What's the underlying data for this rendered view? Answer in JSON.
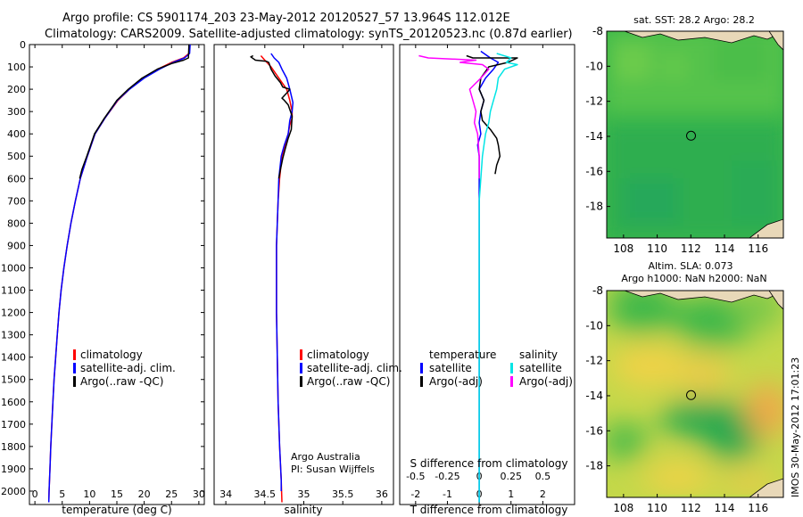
{
  "header": {
    "line1": "Argo profile: CS 5901174_203 23-May-2012 20120527_57 13.964S 112.012E",
    "line2": "Climatology: CARS2009. Satellite-adjusted climatology: synTS_20120523.nc (0.87d earlier)"
  },
  "colors": {
    "climatology": "#ff0000",
    "satellite": "#0000ff",
    "argo": "#000000",
    "t_satellite": "#0000ff",
    "s_satellite": "#00e5e5",
    "s_argo": "#ff00ff"
  },
  "chart_data": [
    {
      "id": "temperature",
      "type": "line",
      "xlabel": "temperature (deg C)",
      "ylabel": "",
      "xlim": [
        -1,
        31
      ],
      "ylim": [
        2060,
        0
      ],
      "xticks": [
        0,
        5,
        10,
        15,
        20,
        25,
        30
      ],
      "xticklabels": [
        "0",
        "5",
        "10",
        "15",
        "20",
        "25",
        "30"
      ],
      "yticks": [
        0,
        100,
        200,
        300,
        400,
        500,
        600,
        700,
        800,
        900,
        1000,
        1100,
        1200,
        1300,
        1400,
        1500,
        1600,
        1700,
        1800,
        1900,
        2000
      ],
      "yticklabels": [
        "0",
        "100",
        "200",
        "300",
        "400",
        "500",
        "600",
        "700",
        "800",
        "900",
        "1000",
        "1100",
        "1200",
        "1300",
        "1400",
        "1500",
        "1600",
        "1700",
        "1800",
        "1900",
        "2000"
      ],
      "legend": [
        "climatology",
        "satellite-adj. clim.",
        "Argo(..raw -QC)"
      ],
      "legend_position": "lower-right",
      "series": [
        {
          "name": "climatology",
          "color": "#ff0000",
          "width": 1.5,
          "points": [
            [
              28.3,
              0
            ],
            [
              28.2,
              40
            ],
            [
              27.2,
              60
            ],
            [
              25,
              80
            ],
            [
              22.5,
              110
            ],
            [
              19.8,
              150
            ],
            [
              17.3,
              200
            ],
            [
              15.2,
              250
            ],
            [
              12.8,
              330
            ],
            [
              11,
              400
            ],
            [
              9.6,
              500
            ],
            [
              8.3,
              600
            ],
            [
              7.4,
              700
            ],
            [
              6.6,
              800
            ],
            [
              5.9,
              900
            ],
            [
              5.3,
              1000
            ],
            [
              4.8,
              1100
            ],
            [
              4.4,
              1200
            ],
            [
              4.1,
              1300
            ],
            [
              3.8,
              1400
            ],
            [
              3.5,
              1500
            ],
            [
              3.3,
              1600
            ],
            [
              3.1,
              1700
            ],
            [
              2.9,
              1800
            ],
            [
              2.75,
              1900
            ],
            [
              2.6,
              2000
            ],
            [
              2.55,
              2050
            ]
          ]
        },
        {
          "name": "satellite-adj. clim.",
          "color": "#0000ff",
          "width": 1.5,
          "points": [
            [
              28.4,
              0
            ],
            [
              28.3,
              40
            ],
            [
              27.4,
              60
            ],
            [
              25.3,
              80
            ],
            [
              22.8,
              110
            ],
            [
              20,
              150
            ],
            [
              17.3,
              200
            ],
            [
              15.1,
              250
            ],
            [
              12.8,
              330
            ],
            [
              11,
              400
            ],
            [
              9.6,
              500
            ],
            [
              8.3,
              600
            ],
            [
              7.4,
              700
            ],
            [
              6.6,
              800
            ],
            [
              5.9,
              900
            ],
            [
              5.3,
              1000
            ],
            [
              4.8,
              1100
            ],
            [
              4.4,
              1200
            ],
            [
              4.1,
              1300
            ],
            [
              3.8,
              1400
            ],
            [
              3.5,
              1500
            ],
            [
              3.3,
              1600
            ],
            [
              3.1,
              1700
            ],
            [
              2.9,
              1800
            ],
            [
              2.75,
              1900
            ],
            [
              2.6,
              2000
            ],
            [
              2.55,
              2050
            ]
          ]
        },
        {
          "name": "Argo(..raw -QC)",
          "color": "#000000",
          "width": 1.5,
          "points": [
            [
              28.2,
              0
            ],
            [
              28.1,
              60
            ],
            [
              27.2,
              70
            ],
            [
              25,
              85
            ],
            [
              22.4,
              110
            ],
            [
              19.6,
              150
            ],
            [
              17.1,
              200
            ],
            [
              15,
              250
            ],
            [
              12.7,
              330
            ],
            [
              10.9,
              400
            ],
            [
              9.5,
              500
            ],
            [
              8.6,
              560
            ],
            [
              8.2,
              600
            ]
          ]
        }
      ]
    },
    {
      "id": "salinity",
      "type": "line",
      "xlabel": "salinity",
      "ylabel": "",
      "xlim": [
        33.85,
        36.15
      ],
      "ylim": [
        2060,
        0
      ],
      "xticks": [
        34,
        34.5,
        35,
        35.5,
        36
      ],
      "xticklabels": [
        "34",
        "34.5",
        "35",
        "35.5",
        "36"
      ],
      "legend": [
        "climatology",
        "satellite-adj. clim.",
        "Argo(..raw -QC)"
      ],
      "legend_position": "lower-right",
      "annotation": [
        "Argo Australia",
        "PI: Susan Wijffels"
      ],
      "series": [
        {
          "name": "climatology",
          "color": "#ff0000",
          "width": 1.5,
          "points": [
            [
              34.45,
              50
            ],
            [
              34.5,
              70
            ],
            [
              34.58,
              100
            ],
            [
              34.68,
              150
            ],
            [
              34.78,
              200
            ],
            [
              34.82,
              250
            ],
            [
              34.85,
              300
            ],
            [
              34.85,
              330
            ],
            [
              34.82,
              360
            ],
            [
              34.8,
              400
            ],
            [
              34.76,
              450
            ],
            [
              34.72,
              500
            ],
            [
              34.69,
              600
            ],
            [
              34.67,
              700
            ],
            [
              34.66,
              800
            ],
            [
              34.65,
              900
            ],
            [
              34.65,
              1000
            ],
            [
              34.65,
              1200
            ],
            [
              34.66,
              1400
            ],
            [
              34.67,
              1600
            ],
            [
              34.69,
              1800
            ],
            [
              34.71,
              1950
            ],
            [
              34.72,
              2050
            ]
          ]
        },
        {
          "name": "satellite-adj. clim.",
          "color": "#0000ff",
          "width": 1.5,
          "points": [
            [
              34.58,
              40
            ],
            [
              34.62,
              60
            ],
            [
              34.68,
              80
            ],
            [
              34.72,
              110
            ],
            [
              34.78,
              150
            ],
            [
              34.82,
              200
            ],
            [
              34.86,
              260
            ],
            [
              34.85,
              300
            ],
            [
              34.82,
              340
            ],
            [
              34.8,
              400
            ],
            [
              34.75,
              450
            ],
            [
              34.71,
              500
            ],
            [
              34.68,
              600
            ],
            [
              34.67,
              700
            ],
            [
              34.66,
              800
            ],
            [
              34.65,
              900
            ],
            [
              34.65,
              1000
            ],
            [
              34.65,
              1200
            ],
            [
              34.66,
              1400
            ],
            [
              34.67,
              1600
            ],
            [
              34.69,
              1800
            ],
            [
              34.71,
              1950
            ],
            [
              34.71,
              2000
            ]
          ]
        },
        {
          "name": "Argo(..raw -QC)",
          "color": "#000000",
          "width": 1.5,
          "points": [
            [
              34.35,
              50
            ],
            [
              34.32,
              55
            ],
            [
              34.38,
              70
            ],
            [
              34.52,
              75
            ],
            [
              34.55,
              80
            ],
            [
              34.58,
              110
            ],
            [
              34.63,
              140
            ],
            [
              34.7,
              170
            ],
            [
              34.73,
              190
            ],
            [
              34.82,
              200
            ],
            [
              34.8,
              210
            ],
            [
              34.72,
              240
            ],
            [
              34.75,
              250
            ],
            [
              34.8,
              270
            ],
            [
              34.85,
              320
            ],
            [
              34.84,
              380
            ],
            [
              34.8,
              420
            ],
            [
              34.76,
              470
            ],
            [
              34.73,
              510
            ],
            [
              34.7,
              560
            ],
            [
              34.68,
              600
            ]
          ]
        }
      ]
    },
    {
      "id": "difference",
      "type": "line",
      "xlabel": "T difference from climatology",
      "xlabel_top": "S difference from climatology",
      "xlim": [
        -2.5,
        3
      ],
      "ylim": [
        2060,
        0
      ],
      "xticks": [
        -2,
        -1,
        0,
        1,
        2
      ],
      "xticklabels": [
        "-2",
        "-1",
        "0",
        "1",
        "2"
      ],
      "s_xticklabels": [
        "-0.5",
        "-0.25",
        "0",
        "0.25",
        "0.5"
      ],
      "legend_temperature_title": "temperature",
      "legend_salinity_title": "salinity",
      "legend_temperature": [
        "satellite",
        "Argo(-adj)"
      ],
      "legend_salinity": [
        "satellite",
        "Argo(-adj)"
      ],
      "legend_position": "lower-center",
      "series": [
        {
          "name": "T satellite",
          "color": "#0000ff",
          "width": 1.5,
          "points": [
            [
              0.05,
              30
            ],
            [
              0.35,
              60
            ],
            [
              0.6,
              80
            ],
            [
              0.45,
              110
            ],
            [
              0.2,
              150
            ],
            [
              0,
              200
            ],
            [
              0.15,
              250
            ],
            [
              0.05,
              300
            ],
            [
              0,
              350
            ],
            [
              0.05,
              400
            ],
            [
              -0.05,
              450
            ],
            [
              0,
              500
            ],
            [
              0,
              600
            ],
            [
              0,
              700
            ],
            [
              0,
              800
            ],
            [
              0,
              1000
            ],
            [
              0,
              1200
            ],
            [
              0,
              1500
            ],
            [
              0,
              1800
            ],
            [
              0,
              2050
            ]
          ]
        },
        {
          "name": "T Argo(-adj)",
          "color": "#000000",
          "width": 1.5,
          "points": [
            [
              -0.4,
              50
            ],
            [
              -0.2,
              60
            ],
            [
              1.2,
              60
            ],
            [
              0.9,
              80
            ],
            [
              0.3,
              100
            ],
            [
              0.05,
              150
            ],
            [
              0,
              200
            ],
            [
              0.15,
              250
            ],
            [
              0.05,
              300
            ],
            [
              0.1,
              340
            ],
            [
              0.35,
              380
            ],
            [
              0.55,
              420
            ],
            [
              0.6,
              450
            ],
            [
              0.65,
              500
            ],
            [
              0.55,
              540
            ],
            [
              0.5,
              580
            ]
          ]
        },
        {
          "name": "S satellite",
          "color": "#00e5e5",
          "width": 1.5,
          "points": [
            [
              0.55,
              40
            ],
            [
              0.9,
              55
            ],
            [
              1.0,
              60
            ],
            [
              0.85,
              80
            ],
            [
              1.2,
              90
            ],
            [
              0.8,
              110
            ],
            [
              0.6,
              150
            ],
            [
              0.55,
              200
            ],
            [
              0.45,
              250
            ],
            [
              0.35,
              300
            ],
            [
              0.3,
              350
            ],
            [
              0.2,
              400
            ],
            [
              0.1,
              500
            ],
            [
              0.05,
              600
            ],
            [
              0,
              700
            ],
            [
              0,
              800
            ],
            [
              0,
              1000
            ],
            [
              0,
              1200
            ],
            [
              0,
              1500
            ],
            [
              0,
              1800
            ],
            [
              0,
              2050
            ]
          ]
        },
        {
          "name": "S Argo(-adj)",
          "color": "#ff00ff",
          "width": 1.5,
          "points": [
            [
              -1.9,
              50
            ],
            [
              -1.6,
              60
            ],
            [
              -0.1,
              70
            ],
            [
              -0.4,
              75
            ],
            [
              -0.6,
              80
            ],
            [
              0.1,
              90
            ],
            [
              0.3,
              110
            ],
            [
              0.05,
              150
            ],
            [
              -0.3,
              200
            ],
            [
              -0.2,
              250
            ],
            [
              -0.1,
              300
            ],
            [
              -0.15,
              350
            ],
            [
              -0.05,
              400
            ],
            [
              0,
              500
            ],
            [
              0,
              550
            ],
            [
              0,
              600
            ]
          ]
        }
      ]
    },
    {
      "id": "sst_map",
      "type": "heatmap",
      "title": "sat. SST: 28.2 Argo: 28.2",
      "xlim": [
        107,
        117.5
      ],
      "ylim": [
        -19.8,
        -8
      ],
      "xticks": [
        108,
        110,
        112,
        114,
        116
      ],
      "yticks": [
        -8,
        -10,
        -12,
        -14,
        -16,
        -18
      ],
      "marker": {
        "lon": 112.012,
        "lat": -13.964
      }
    },
    {
      "id": "sla_map",
      "type": "heatmap",
      "title": "Altim. SLA: 0.073",
      "subtitle": "Argo h1000: NaN h2000: NaN",
      "xlim": [
        107,
        117.5
      ],
      "ylim": [
        -19.8,
        -8
      ],
      "xticks": [
        108,
        110,
        112,
        114,
        116
      ],
      "yticks": [
        -8,
        -10,
        -12,
        -14,
        -16,
        -18
      ],
      "marker": {
        "lon": 112.012,
        "lat": -13.964
      }
    }
  ],
  "footer": {
    "stamp": "IMOS 30-May-2012 17:01:23"
  }
}
